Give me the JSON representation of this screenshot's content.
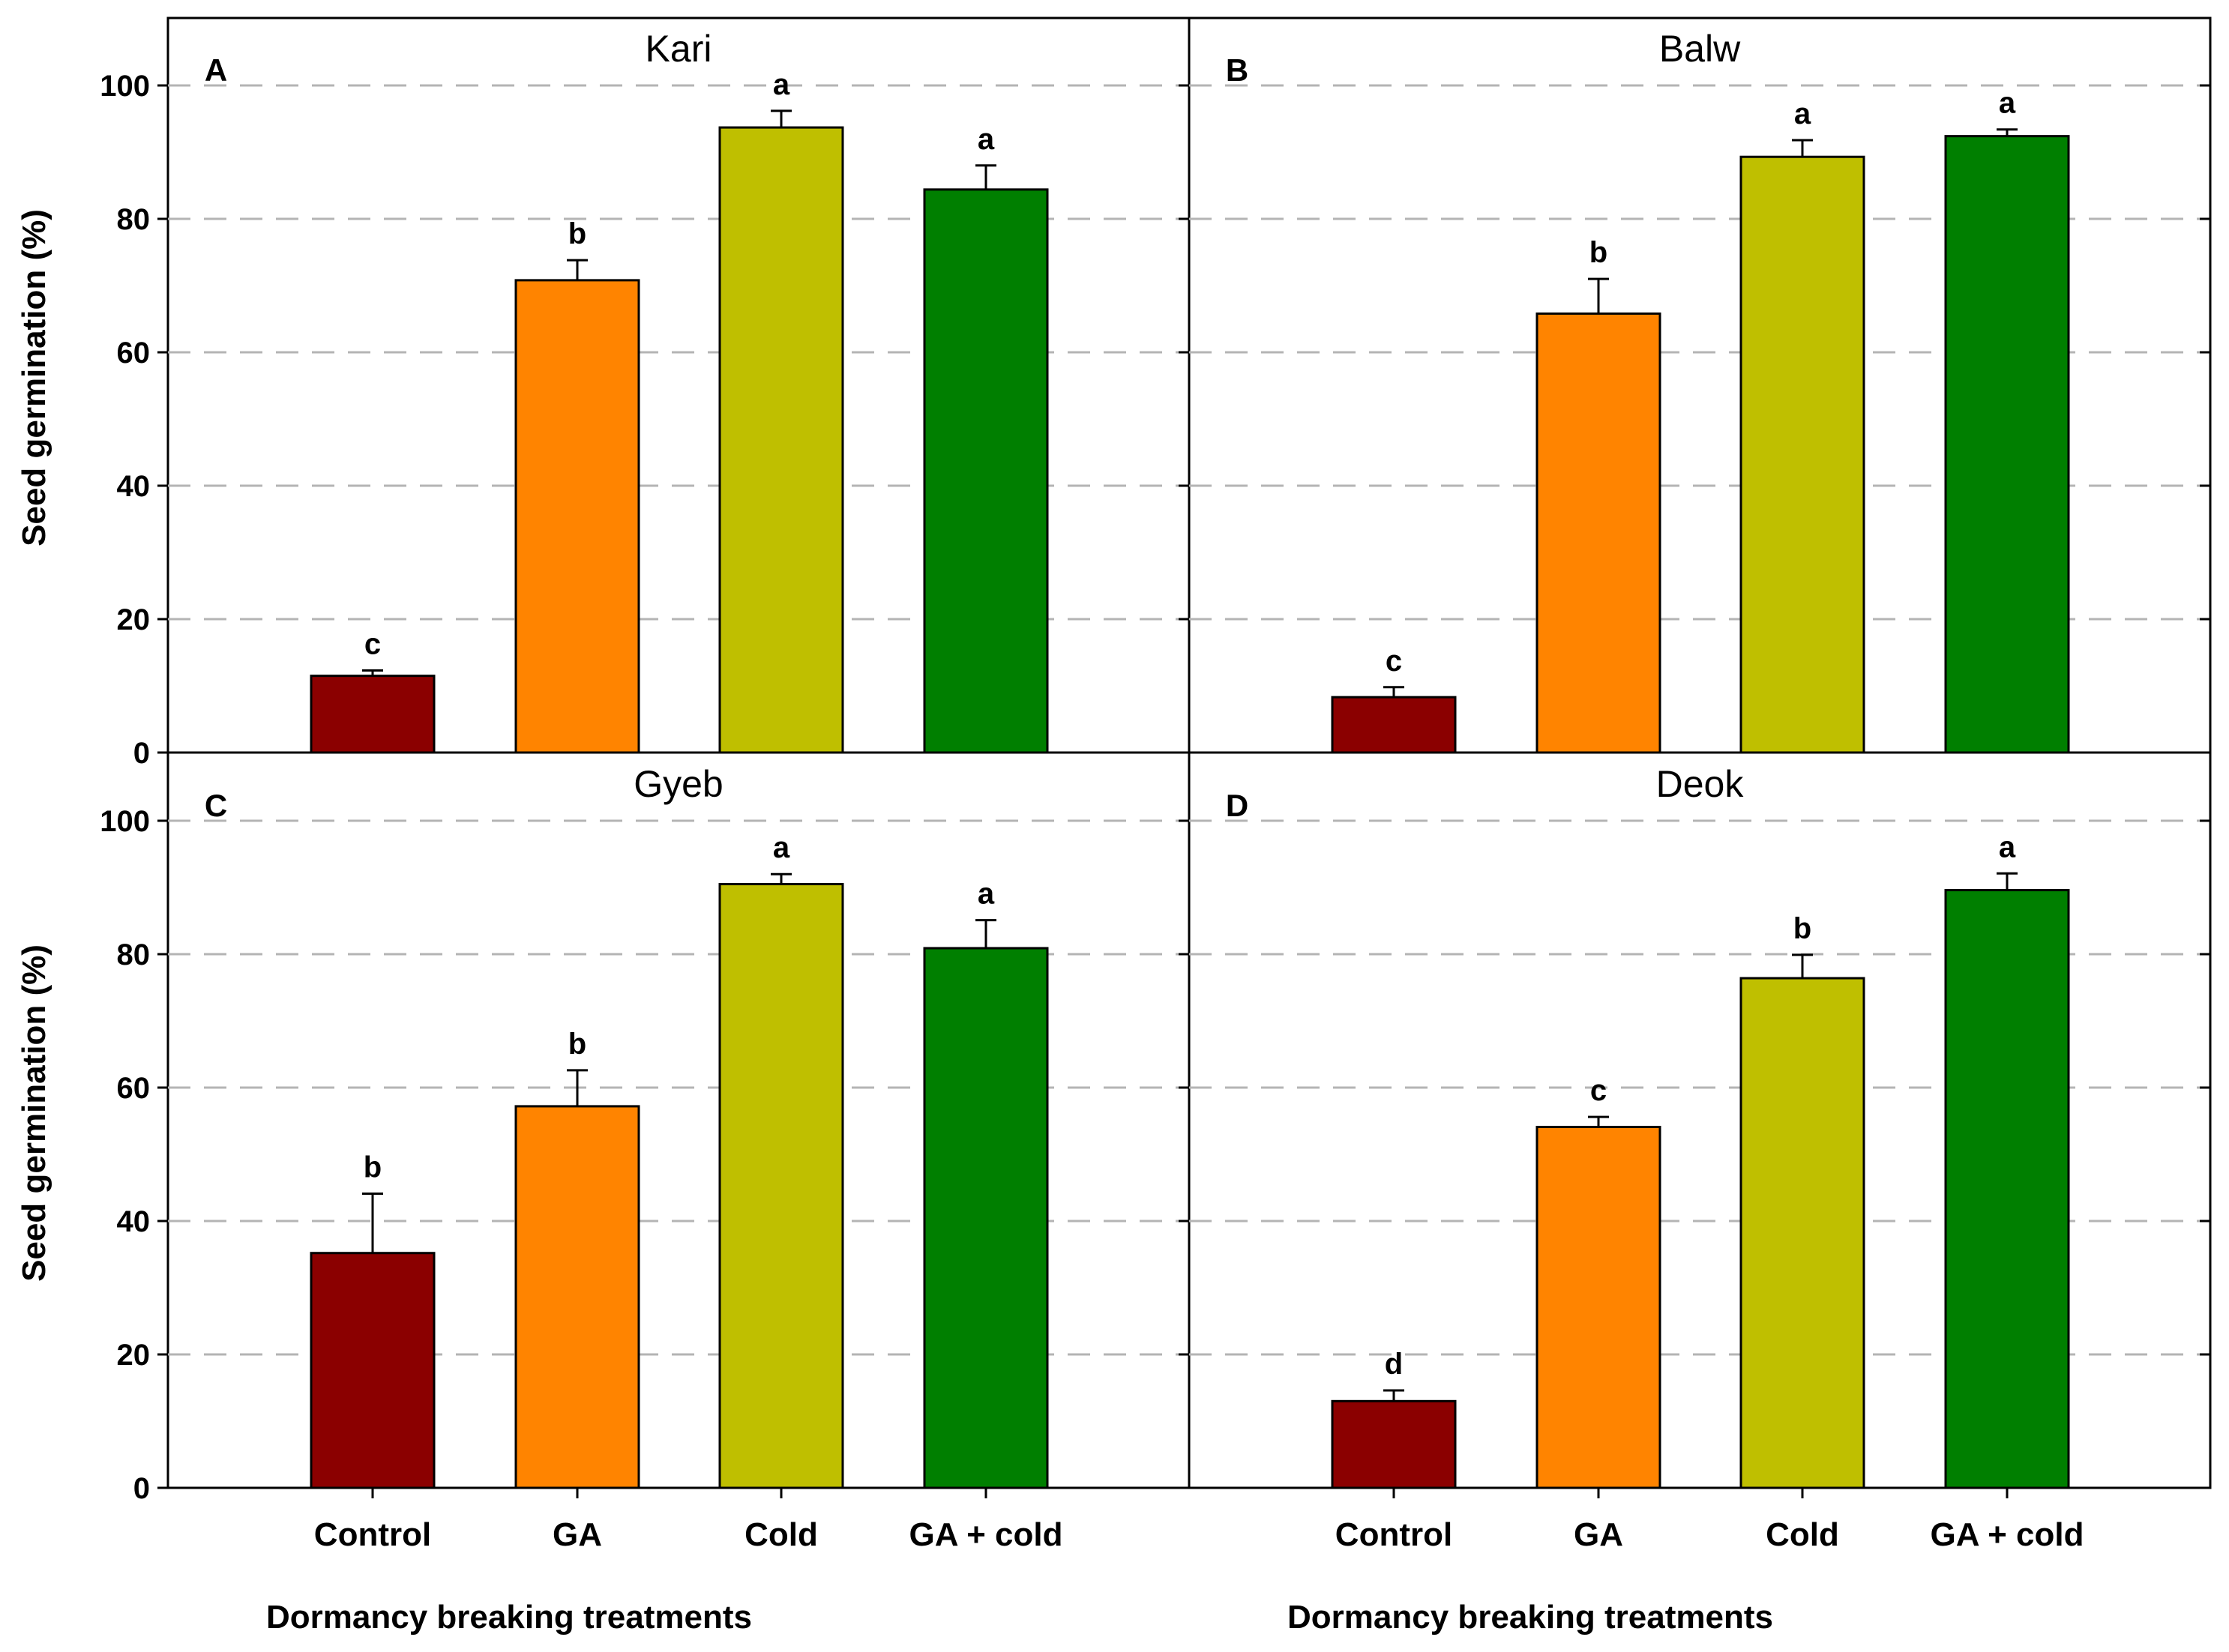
{
  "chart_data": {
    "type": "bar",
    "ylabel": "Seed germination (%)",
    "xlabel": "Dormancy breaking treatments",
    "ylim": [
      0,
      110
    ],
    "yticks": [
      0,
      20,
      40,
      60,
      80,
      100
    ],
    "grid": "dashed horizontal",
    "categories": [
      "Control",
      "GA",
      "Cold",
      "GA + cold"
    ],
    "colors": [
      "#8b0000",
      "#ff8400",
      "#bfbf00",
      "#007f00"
    ],
    "panels": [
      {
        "letter": "A",
        "title": "Kari",
        "values": [
          11.5,
          70.8,
          93.7,
          84.4
        ],
        "errors": [
          0.8,
          3.0,
          2.5,
          3.6
        ],
        "letters": [
          "c",
          "b",
          "a",
          "a"
        ]
      },
      {
        "letter": "B",
        "title": "Balw",
        "values": [
          8.3,
          65.8,
          89.3,
          92.4
        ],
        "errors": [
          1.5,
          5.2,
          2.5,
          1.0
        ],
        "letters": [
          "c",
          "b",
          "a",
          "a"
        ]
      },
      {
        "letter": "C",
        "title": "Gyeb",
        "values": [
          35.2,
          57.2,
          90.5,
          80.9
        ],
        "errors": [
          8.9,
          5.4,
          1.5,
          4.2
        ],
        "letters": [
          "b",
          "b",
          "a",
          "a"
        ]
      },
      {
        "letter": "D",
        "title": "Deok",
        "values": [
          13.0,
          54.1,
          76.4,
          89.6
        ],
        "errors": [
          1.6,
          1.5,
          3.5,
          2.5
        ],
        "letters": [
          "d",
          "c",
          "b",
          "a"
        ]
      }
    ]
  }
}
